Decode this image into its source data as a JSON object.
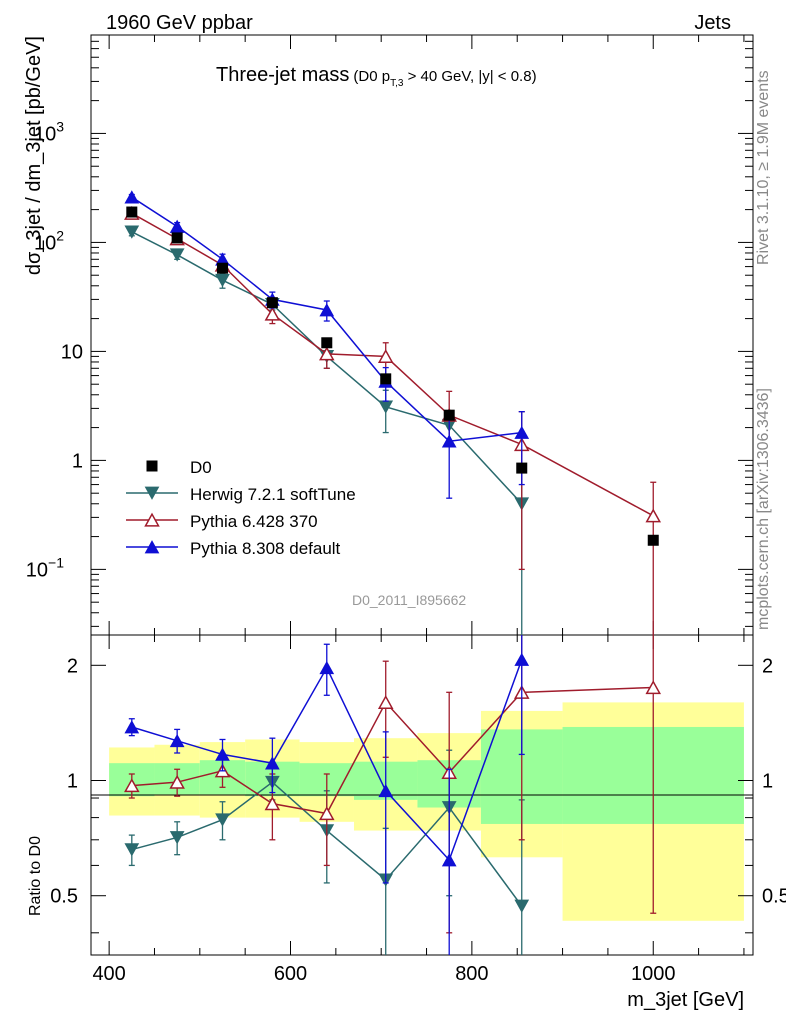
{
  "header": {
    "left": "1960 GeV ppbar",
    "right": "Jets",
    "title_main": "Three-jet mass",
    "title_sub_a": "(D0 p",
    "title_sub_b": "T,3",
    "title_sub_c": " > 40 GeV, |y| < 0.8)"
  },
  "side": {
    "rivet": "Rivet 3.1.10, ≥ 1.9M events",
    "mcplots": "mcplots.cern.ch [arXiv:1306.3436]"
  },
  "watermark": "D0_2011_I895662",
  "axes": {
    "ylabel_top": "dσ_3jet / dm_3jet [pb/GeV]",
    "ylabel_bottom": "Ratio to D0",
    "xlabel": "m_3jet [GeV]",
    "x_ticks": [
      "400",
      "600",
      "800",
      "1000"
    ],
    "y_top_ticks": [
      {
        "value": 1000,
        "label": "10",
        "sup": "3"
      },
      {
        "value": 100,
        "label": "10",
        "sup": "2"
      },
      {
        "value": 10,
        "label": "10",
        "sup": ""
      },
      {
        "value": 1,
        "label": "1",
        "sup": ""
      },
      {
        "value": 0.1,
        "label": "10",
        "sup": "−1"
      }
    ],
    "y_bottom_ticks": [
      "0.5",
      "1",
      "2"
    ]
  },
  "chart_data": {
    "type": "line",
    "x_range": [
      380,
      1110
    ],
    "y_range_top": [
      0.025,
      8000
    ],
    "y_scale_top": "log",
    "y_range_bottom": [
      0.35,
      2.4
    ],
    "y_scale_bottom": "log",
    "bins": [
      {
        "lo": 400,
        "hi": 450
      },
      {
        "lo": 450,
        "hi": 500
      },
      {
        "lo": 500,
        "hi": 550
      },
      {
        "lo": 550,
        "hi": 610
      },
      {
        "lo": 610,
        "hi": 670
      },
      {
        "lo": 670,
        "hi": 740
      },
      {
        "lo": 740,
        "hi": 810
      },
      {
        "lo": 810,
        "hi": 900
      },
      {
        "lo": 900,
        "hi": 1100
      }
    ],
    "data": {
      "name": "D0",
      "x": [
        425,
        475,
        525,
        580,
        640,
        705,
        775,
        855,
        1000
      ],
      "y": [
        190,
        110,
        58,
        28,
        12,
        5.6,
        2.6,
        0.85,
        0.185
      ],
      "band_inner": [
        [
          0.91,
          1.11
        ],
        [
          0.92,
          1.11
        ],
        [
          0.92,
          1.13
        ],
        [
          0.91,
          1.12
        ],
        [
          0.91,
          1.11
        ],
        [
          0.89,
          1.12
        ],
        [
          0.85,
          1.13
        ],
        [
          0.77,
          1.36
        ],
        [
          0.77,
          1.38
        ]
      ],
      "band_outer": [
        [
          0.81,
          1.22
        ],
        [
          0.81,
          1.24
        ],
        [
          0.8,
          1.26
        ],
        [
          0.8,
          1.28
        ],
        [
          0.78,
          1.26
        ],
        [
          0.74,
          1.29
        ],
        [
          0.74,
          1.33
        ],
        [
          0.63,
          1.52
        ],
        [
          0.43,
          1.6
        ]
      ]
    },
    "series": [
      {
        "name": "Herwig 7.2.1 softTune",
        "color": "#2a6a6e",
        "marker": "triangle-down-filled",
        "x": [
          425,
          475,
          525,
          580,
          640,
          705,
          775,
          855
        ],
        "y": [
          125,
          77,
          45,
          27,
          9,
          3.1,
          2.1,
          0.4
        ],
        "err_lo": [
          10,
          7,
          7,
          3,
          2,
          1.3,
          0.6,
          0.38
        ],
        "err_hi": [
          10,
          7,
          7,
          3,
          2,
          1.3,
          0.6,
          0.38
        ],
        "ratio": [
          0.66,
          0.71,
          0.79,
          0.99,
          0.74,
          0.55,
          0.85,
          0.47
        ],
        "ratio_err": [
          0.06,
          0.07,
          0.09,
          0.1,
          0.2,
          0.2,
          0.35,
          0.42
        ]
      },
      {
        "name": "Pythia 6.428 370",
        "color": "#a01c2c",
        "marker": "triangle-up-open",
        "x": [
          425,
          475,
          525,
          580,
          640,
          705,
          775,
          855,
          1000
        ],
        "y": [
          185,
          108,
          62,
          22,
          9.5,
          9,
          2.6,
          1.4,
          0.31
        ],
        "err_lo": [
          12,
          9,
          7,
          4,
          2.5,
          3,
          1.2,
          1.3,
          0.3
        ],
        "err_hi": [
          12,
          9,
          7,
          4,
          2.5,
          3,
          1.7,
          1.4,
          0.32
        ],
        "ratio": [
          0.97,
          0.99,
          1.06,
          0.87,
          0.82,
          1.6,
          1.05,
          1.7,
          1.75
        ],
        "ratio_err": [
          0.07,
          0.08,
          0.1,
          0.17,
          0.22,
          0.45,
          0.65,
          1.0,
          1.3
        ]
      },
      {
        "name": "Pythia 8.308 default",
        "color": "#0f0fd4",
        "marker": "triangle-up-filled",
        "x": [
          425,
          475,
          525,
          580,
          640,
          705,
          775,
          855
        ],
        "y": [
          260,
          140,
          70,
          30,
          24,
          5.3,
          1.5,
          1.8
        ],
        "err_lo": [
          15,
          12,
          8,
          5,
          5,
          1.8,
          1.05,
          1.2
        ],
        "err_hi": [
          15,
          12,
          8,
          5,
          5,
          1.8,
          1.05,
          1.0
        ],
        "ratio": [
          1.38,
          1.27,
          1.17,
          1.11,
          1.97,
          0.94,
          0.62,
          2.07
        ],
        "ratio_err": [
          0.07,
          0.09,
          0.11,
          0.18,
          0.3,
          0.4,
          0.45,
          0.9
        ]
      }
    ]
  }
}
